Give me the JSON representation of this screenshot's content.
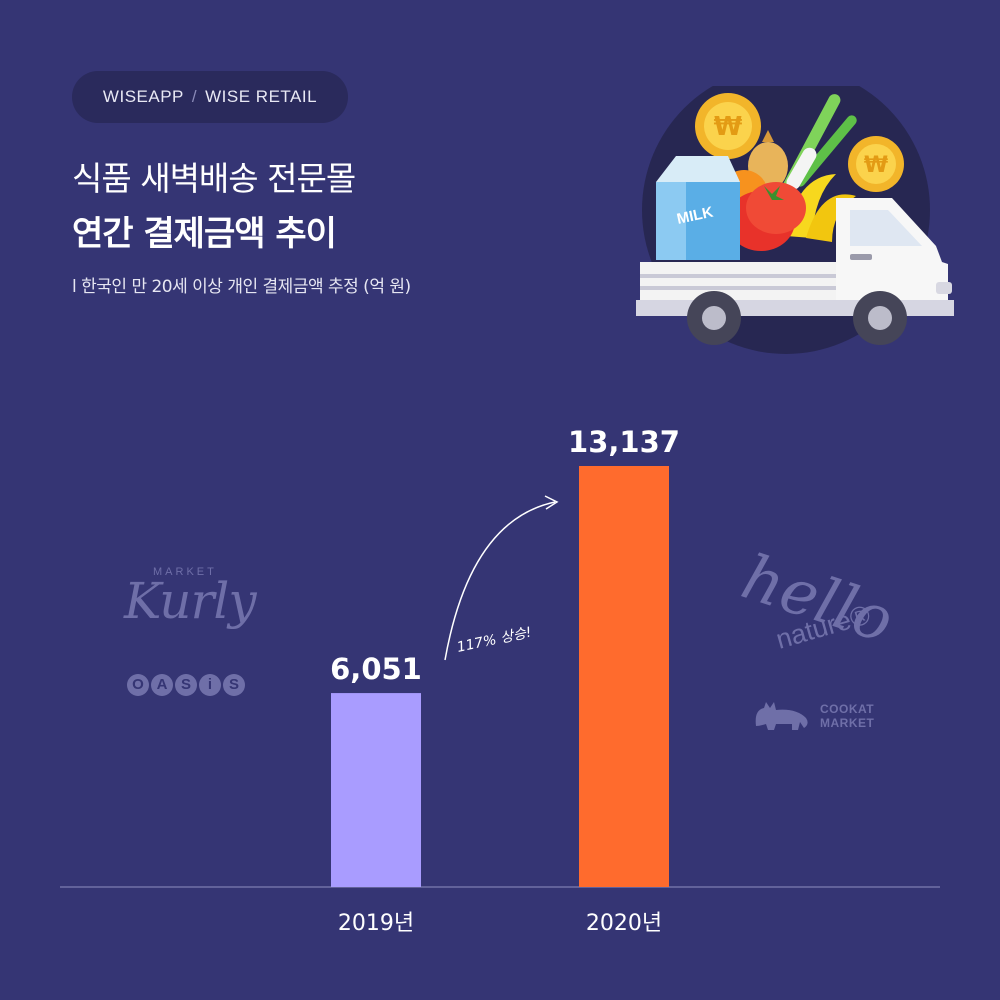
{
  "header": {
    "source_left": "WISEAPP",
    "source_sep": "/",
    "source_right": "WISE RETAIL",
    "title_line1": "식품 새벽배송 전문몰",
    "title_line2": "연간 결제금액 추이",
    "subtitle": "l 한국인 만 20세 이상 개인 결제금액 추정 (억 원)"
  },
  "illustration": {
    "milk_label": "MILK",
    "coin_symbol": "₩"
  },
  "brands": {
    "kurly_market": "MARKET",
    "kurly": "Kurly",
    "oasis": [
      "O",
      "A",
      "S",
      "i",
      "S"
    ],
    "hello": "hello",
    "nature": "nature®",
    "cookat_line1": "COOKAT",
    "cookat_line2": "MARKET"
  },
  "chart_data": {
    "type": "bar",
    "categories": [
      "2019년",
      "2020년"
    ],
    "values": [
      6051,
      13137
    ],
    "value_labels": [
      "6,051",
      "13,137"
    ],
    "colors": [
      "#a99cff",
      "#ff6b2d"
    ],
    "ylim": [
      0,
      14000
    ],
    "annotation": "117% 상승!",
    "grid": false,
    "legend": "none"
  },
  "colors": {
    "background": "#353574",
    "accent_2019": "#a99cff",
    "accent_2020": "#ff6b2d"
  }
}
